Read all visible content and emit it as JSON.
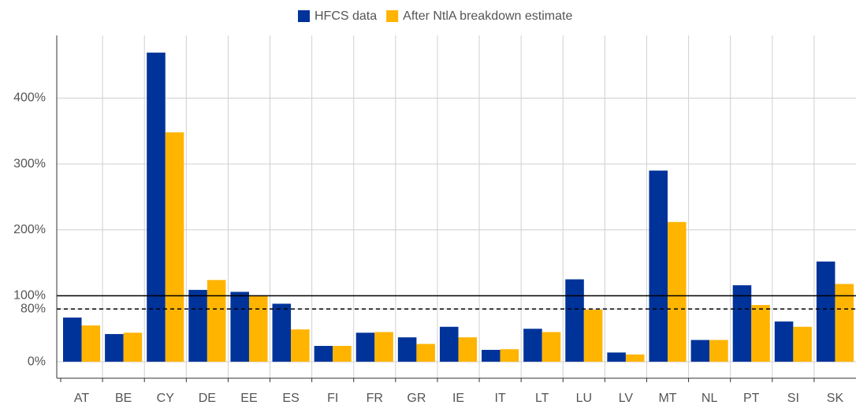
{
  "chart_data": {
    "type": "bar",
    "categories": [
      "AT",
      "BE",
      "CY",
      "DE",
      "EE",
      "ES",
      "FI",
      "FR",
      "GR",
      "IE",
      "IT",
      "LT",
      "LU",
      "LV",
      "MT",
      "NL",
      "PT",
      "SI",
      "SK"
    ],
    "series": [
      {
        "name": "HFCS data",
        "color": "#003399",
        "values": [
          67,
          42,
          469,
          109,
          106,
          88,
          24,
          44,
          37,
          53,
          18,
          50,
          125,
          14,
          290,
          33,
          116,
          61,
          152
        ]
      },
      {
        "name": "After NtlA breakdown estimate",
        "color": "#ffb400",
        "values": [
          55,
          44,
          348,
          124,
          100,
          49,
          24,
          45,
          27,
          37,
          19,
          45,
          79,
          11,
          212,
          33,
          86,
          53,
          118
        ]
      }
    ],
    "ylim": [
      -25,
      495
    ],
    "yticks": [
      {
        "value": 0,
        "label": "0%"
      },
      {
        "value": 80,
        "label": "80%"
      },
      {
        "value": 100,
        "label": "100%"
      },
      {
        "value": 200,
        "label": "200%"
      },
      {
        "value": 300,
        "label": "300%"
      },
      {
        "value": 400,
        "label": "400%"
      }
    ],
    "hlines": [
      {
        "value": 100,
        "style": "solid"
      },
      {
        "value": 80,
        "style": "dashed"
      }
    ],
    "grid": true,
    "legend": "top"
  }
}
